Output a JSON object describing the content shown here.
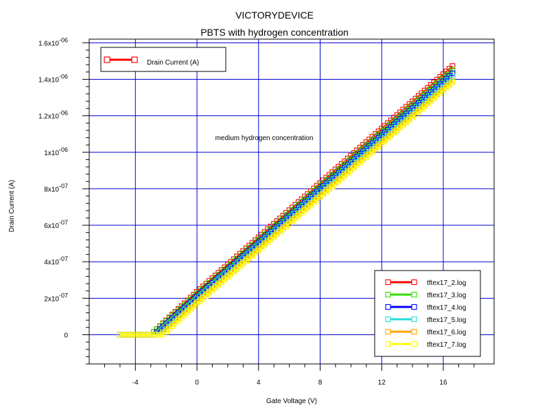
{
  "chart_data": {
    "type": "line",
    "title": "VICTORYDEVICE",
    "subtitle": "PBTS with hydrogen concentration",
    "xlabel": "Gate Voltage (V)",
    "ylabel": "Drain Current (A)",
    "annotation": "medium hydrogen concentration",
    "xlim": [
      -7,
      19.3
    ],
    "ylim": [
      -1.6e-07,
      1.62e-06
    ],
    "x_ticks": [
      {
        "value": -4,
        "label": "-4"
      },
      {
        "value": 0,
        "label": "0"
      },
      {
        "value": 4,
        "label": "4"
      },
      {
        "value": 8,
        "label": "8"
      },
      {
        "value": 12,
        "label": "12"
      },
      {
        "value": 16,
        "label": "16"
      }
    ],
    "y_ticks": [
      {
        "value": 0,
        "base": "0",
        "exp": ""
      },
      {
        "value": 2e-07,
        "base": "2x10",
        "exp": "-07"
      },
      {
        "value": 4e-07,
        "base": "4x10",
        "exp": "-07"
      },
      {
        "value": 6e-07,
        "base": "6x10",
        "exp": "-07"
      },
      {
        "value": 8e-07,
        "base": "8x10",
        "exp": "-07"
      },
      {
        "value": 1e-06,
        "base": "1x10",
        "exp": "-06"
      },
      {
        "value": 1.2e-06,
        "base": "1.2x10",
        "exp": "-06"
      },
      {
        "value": 1.4e-06,
        "base": "1.4x10",
        "exp": "-06"
      },
      {
        "value": 1.6e-06,
        "base": "1.6x10",
        "exp": "-06"
      }
    ],
    "grid": true,
    "legend_top": {
      "placement": "top-left",
      "label": "Drain Current (A)",
      "color": "#ff0000"
    },
    "legend_bottom": {
      "placement": "bottom-right"
    },
    "series": [
      {
        "name": "tftex17_2.log",
        "color": "#ff0000",
        "x": [
          -3.0,
          0.0,
          16.7
        ],
        "y": [
          0,
          2.35e-07,
          1.48e-06
        ]
      },
      {
        "name": "tftex17_3.log",
        "color": "#33dd00",
        "x": [
          -3.0,
          0.0,
          16.7
        ],
        "y": [
          0,
          2.25e-07,
          1.46e-06
        ]
      },
      {
        "name": "tftex17_4.log",
        "color": "#0000ff",
        "x": [
          -2.8,
          0.0,
          16.7
        ],
        "y": [
          0,
          2.1e-07,
          1.44e-06
        ]
      },
      {
        "name": "tftex17_5.log",
        "color": "#22dddd",
        "x": [
          -2.6,
          0.0,
          16.7
        ],
        "y": [
          0,
          1.95e-07,
          1.42e-06
        ]
      },
      {
        "name": "tftex17_6.log",
        "color": "#ffa500",
        "x": [
          -2.4,
          0.0,
          16.7
        ],
        "y": [
          0,
          1.8e-07,
          1.4e-06
        ]
      },
      {
        "name": "tftex17_7.log",
        "color": "#ffff00",
        "x": [
          -2.2,
          0.0,
          16.7
        ],
        "y": [
          0,
          1.7e-07,
          1.39e-06
        ]
      }
    ],
    "x_start": -5.0,
    "marker_step": 0.2
  }
}
